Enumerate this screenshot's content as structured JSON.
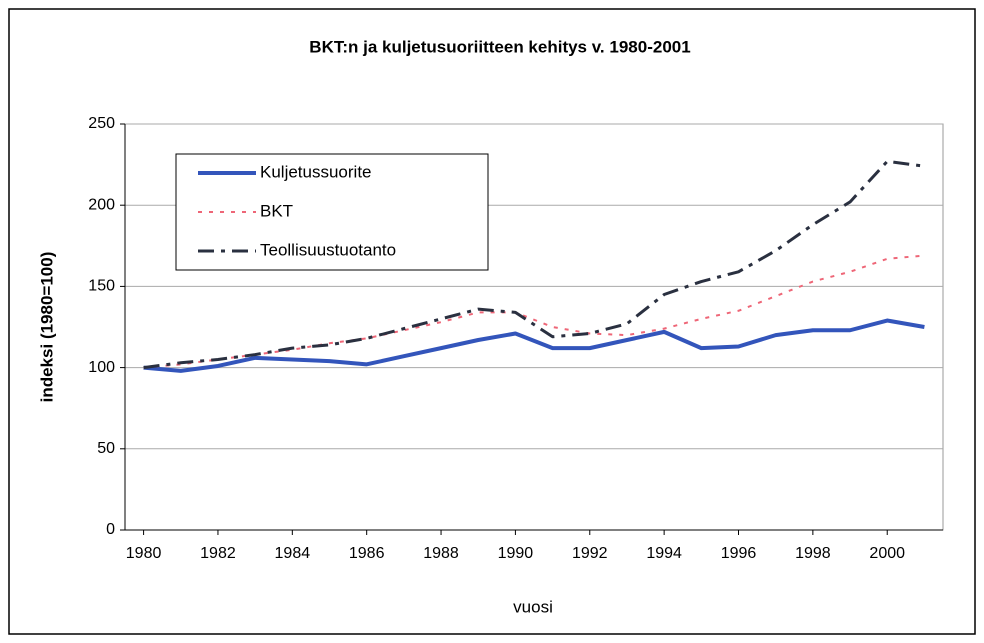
{
  "chart_data": {
    "type": "line",
    "title": "BKT:n ja kuljetusuoriitteen kehitys v. 1980-2001",
    "xlabel": "vuosi",
    "ylabel": "indeksi (1980=100)",
    "x": [
      1980,
      1981,
      1982,
      1983,
      1984,
      1985,
      1986,
      1987,
      1988,
      1989,
      1990,
      1991,
      1992,
      1993,
      1994,
      1995,
      1996,
      1997,
      1998,
      1999,
      2000,
      2001
    ],
    "series": [
      {
        "name": "Kuljetussuorite",
        "color": "#3355bb",
        "style": "solid",
        "values": [
          100,
          98,
          101,
          106,
          105,
          104,
          102,
          107,
          112,
          117,
          121,
          112,
          112,
          117,
          122,
          112,
          113,
          120,
          123,
          123,
          129,
          125
        ]
      },
      {
        "name": "BKT",
        "color": "#ee6677",
        "style": "dotted",
        "values": [
          100,
          102,
          105,
          108,
          111,
          115,
          118,
          123,
          128,
          134,
          134,
          125,
          121,
          120,
          124,
          130,
          135,
          144,
          153,
          159,
          167,
          169
        ]
      },
      {
        "name": "Teollisuustuotanto",
        "color": "#2a3040",
        "style": "dashdot",
        "values": [
          100,
          103,
          105,
          108,
          112,
          114,
          118,
          124,
          130,
          136,
          134,
          119,
          121,
          127,
          145,
          153,
          159,
          172,
          188,
          202,
          227,
          224
        ]
      }
    ],
    "xlim": [
      1979.5,
      2001.5
    ],
    "xticks": [
      1980,
      1982,
      1984,
      1986,
      1988,
      1990,
      1992,
      1994,
      1996,
      1998,
      2000
    ],
    "ylim": [
      0,
      250
    ],
    "yticks": [
      0,
      50,
      100,
      150,
      200,
      250
    ],
    "grid": true,
    "legend": "upper left"
  }
}
